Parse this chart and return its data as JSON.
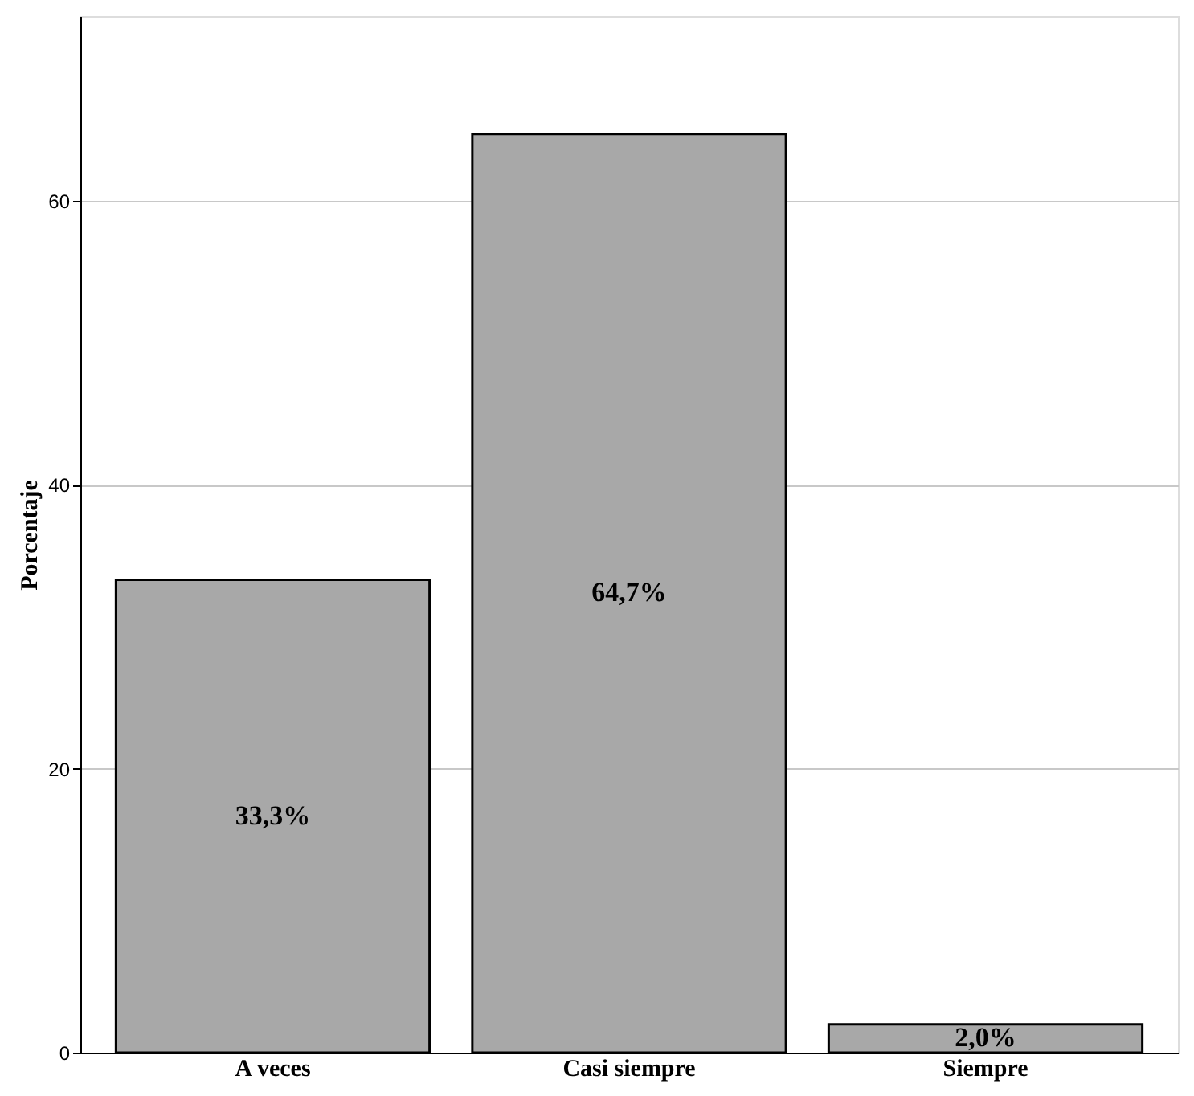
{
  "chart_data": {
    "type": "bar",
    "ylabel": "Porcentaje",
    "categories": [
      "A veces",
      "Casi siempre",
      "Siempre"
    ],
    "values": [
      33.3,
      64.7,
      2.0
    ],
    "value_labels": [
      "33,3%",
      "64,7%",
      "2,0%"
    ],
    "color": "#a8a8a8",
    "ylim": [
      0,
      73
    ],
    "yticks": [
      0,
      20,
      40,
      60
    ],
    "grid": "y"
  }
}
